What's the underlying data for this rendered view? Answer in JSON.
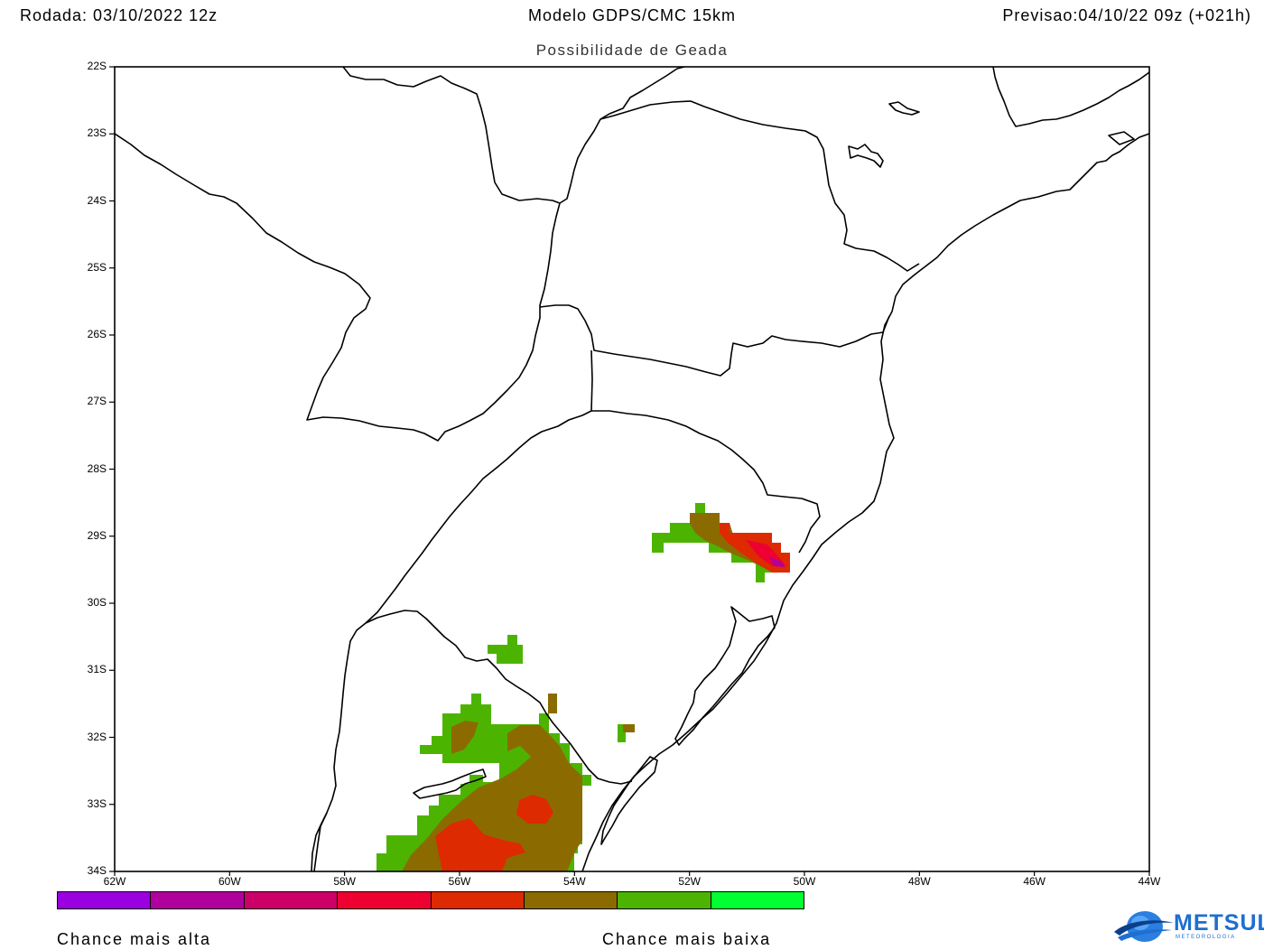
{
  "header": {
    "run": "Rodada: 03/10/2022 12z",
    "model": "Modelo GDPS/CMC 15km",
    "forecast": "Previsao:04/10/22 09z (+021h)",
    "subtitle": "Possibilidade de Geada"
  },
  "map": {
    "lat_ticks": [
      "22S",
      "23S",
      "24S",
      "25S",
      "26S",
      "27S",
      "28S",
      "29S",
      "30S",
      "31S",
      "32S",
      "33S",
      "34S"
    ],
    "lon_ticks": [
      "62W",
      "60W",
      "58W",
      "56W",
      "54W",
      "52W",
      "50W",
      "48W",
      "46W",
      "44W"
    ],
    "border_color": "#000000"
  },
  "legend": {
    "colors": [
      "#9a00e0",
      "#b0009e",
      "#cc0066",
      "#ee0030",
      "#dd2a00",
      "#8b6b00",
      "#4cb400",
      "#00ff33"
    ],
    "label_high": "Chance mais alta",
    "label_low": "Chance mais baixa"
  },
  "logo": {
    "name": "METSUL",
    "tagline": "METEOROLOGIA",
    "color": "#1e6fd0"
  }
}
